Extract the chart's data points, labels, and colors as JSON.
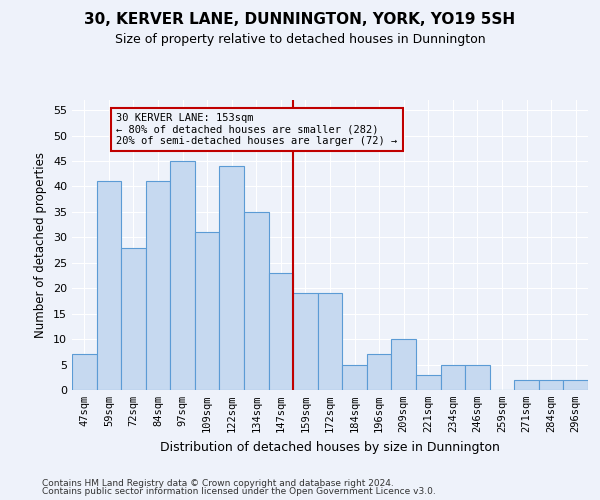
{
  "title": "30, KERVER LANE, DUNNINGTON, YORK, YO19 5SH",
  "subtitle": "Size of property relative to detached houses in Dunnington",
  "xlabel": "Distribution of detached houses by size in Dunnington",
  "ylabel": "Number of detached properties",
  "categories": [
    "47sqm",
    "59sqm",
    "72sqm",
    "84sqm",
    "97sqm",
    "109sqm",
    "122sqm",
    "134sqm",
    "147sqm",
    "159sqm",
    "172sqm",
    "184sqm",
    "196sqm",
    "209sqm",
    "221sqm",
    "234sqm",
    "246sqm",
    "259sqm",
    "271sqm",
    "284sqm",
    "296sqm"
  ],
  "values": [
    7,
    41,
    28,
    41,
    45,
    31,
    44,
    35,
    23,
    19,
    19,
    5,
    7,
    10,
    3,
    5,
    5,
    0,
    2,
    2,
    2
  ],
  "bar_color": "#c6d9f0",
  "bar_edgecolor": "#5b9bd5",
  "ylim": [
    0,
    57
  ],
  "yticks": [
    0,
    5,
    10,
    15,
    20,
    25,
    30,
    35,
    40,
    45,
    50,
    55
  ],
  "property_line_x": 8.5,
  "property_line_color": "#c00000",
  "annotation_text": "30 KERVER LANE: 153sqm\n← 80% of detached houses are smaller (282)\n20% of semi-detached houses are larger (72) →",
  "annotation_box_color": "#c00000",
  "background_color": "#eef2fa",
  "grid_color": "#ffffff",
  "footer_line1": "Contains HM Land Registry data © Crown copyright and database right 2024.",
  "footer_line2": "Contains public sector information licensed under the Open Government Licence v3.0."
}
